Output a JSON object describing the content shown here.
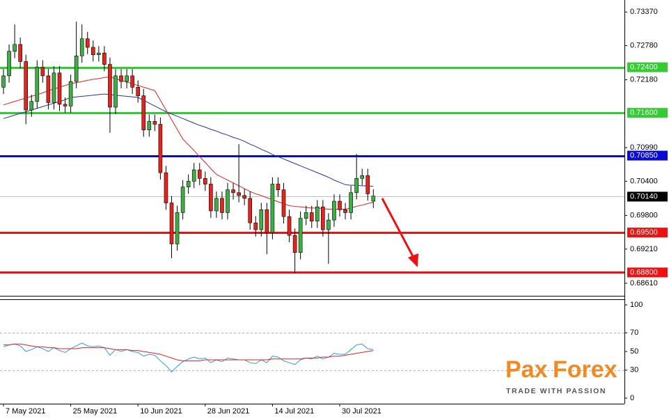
{
  "chart_data": [
    {
      "type": "candlestick",
      "categories": [
        "7 May 2021",
        null,
        null,
        null,
        null,
        null,
        null,
        null,
        null,
        null,
        null,
        null,
        "25 May 2021",
        null,
        null,
        null,
        null,
        null,
        null,
        null,
        null,
        null,
        null,
        null,
        "10 Jun 2021",
        null,
        null,
        null,
        null,
        null,
        null,
        null,
        null,
        null,
        null,
        null,
        "28 Jun 2021",
        null,
        null,
        null,
        null,
        null,
        null,
        null,
        null,
        null,
        null,
        null,
        "14 Jul 2021",
        null,
        null,
        null,
        null,
        null,
        null,
        null,
        null,
        null,
        null,
        null,
        "30 Jul 2021",
        null,
        null,
        null,
        null,
        null,
        null
      ],
      "open": [
        0.7205,
        0.7225,
        0.7268,
        0.728,
        0.725,
        0.7165,
        0.718,
        0.724,
        0.7225,
        0.7178,
        0.723,
        0.7175,
        0.7172,
        0.7215,
        0.726,
        0.729,
        0.7275,
        0.7262,
        0.7265,
        0.7245,
        0.717,
        0.7225,
        0.7215,
        0.7225,
        0.7205,
        0.719,
        0.713,
        0.7145,
        0.714,
        0.7055,
        0.7002,
        0.693,
        0.6985,
        0.703,
        0.704,
        0.706,
        0.7045,
        0.7035,
        0.6988,
        0.701,
        0.6985,
        0.7025,
        0.702,
        0.7015,
        0.701,
        0.6967,
        0.6955,
        0.699,
        0.695,
        0.7035,
        0.7025,
        0.6978,
        0.6945,
        0.6915,
        0.6975,
        0.6985,
        0.697,
        0.6995,
        0.6955,
        0.6972,
        0.7005,
        0.699,
        0.6985,
        0.702,
        0.7045,
        0.705,
        0.7005
      ],
      "high": [
        0.7237,
        0.728,
        0.7315,
        0.7292,
        0.7262,
        0.7192,
        0.7252,
        0.7252,
        0.7237,
        0.7242,
        0.7242,
        0.7187,
        0.7227,
        0.732,
        0.7315,
        0.7302,
        0.7287,
        0.7277,
        0.7277,
        0.7257,
        0.7237,
        0.7237,
        0.7237,
        0.7237,
        0.7217,
        0.7202,
        0.7157,
        0.7157,
        0.7152,
        0.7067,
        0.7014,
        0.6997,
        0.7042,
        0.7052,
        0.7072,
        0.7072,
        0.7057,
        0.7047,
        0.7022,
        0.7022,
        0.7037,
        0.7037,
        0.7105,
        0.7027,
        0.7022,
        0.6979,
        0.7002,
        0.7002,
        0.7047,
        0.7047,
        0.7037,
        0.699,
        0.6957,
        0.6987,
        0.6997,
        0.6997,
        0.7007,
        0.7007,
        0.6984,
        0.7017,
        0.7017,
        0.7002,
        0.7032,
        0.7088,
        0.7062,
        0.7062,
        0.7026
      ],
      "low": [
        0.7193,
        0.7213,
        0.7256,
        0.7238,
        0.714,
        0.7153,
        0.7168,
        0.7213,
        0.7166,
        0.7166,
        0.7163,
        0.716,
        0.716,
        0.7203,
        0.7248,
        0.7263,
        0.725,
        0.725,
        0.7233,
        0.7125,
        0.7158,
        0.7203,
        0.7203,
        0.7193,
        0.7178,
        0.7118,
        0.7118,
        0.7128,
        0.7043,
        0.699,
        0.6905,
        0.6918,
        0.6973,
        0.7018,
        0.7028,
        0.7033,
        0.7023,
        0.6976,
        0.6976,
        0.6973,
        0.6973,
        0.7008,
        0.7003,
        0.6998,
        0.6955,
        0.6943,
        0.6943,
        0.6912,
        0.6938,
        0.7013,
        0.6966,
        0.6933,
        0.6878,
        0.6903,
        0.6963,
        0.6958,
        0.6958,
        0.6943,
        0.6895,
        0.696,
        0.6978,
        0.6973,
        0.6973,
        0.7008,
        0.7033,
        0.7006,
        0.6993
      ],
      "close": [
        0.7225,
        0.7268,
        0.728,
        0.725,
        0.7165,
        0.718,
        0.724,
        0.7225,
        0.7178,
        0.723,
        0.7175,
        0.7172,
        0.7215,
        0.726,
        0.729,
        0.7275,
        0.7262,
        0.7265,
        0.7245,
        0.717,
        0.7225,
        0.7215,
        0.7225,
        0.7205,
        0.719,
        0.713,
        0.7145,
        0.714,
        0.7055,
        0.7002,
        0.693,
        0.6985,
        0.703,
        0.704,
        0.706,
        0.7045,
        0.7035,
        0.6988,
        0.701,
        0.6985,
        0.7025,
        0.702,
        0.7015,
        0.701,
        0.6967,
        0.6955,
        0.699,
        0.695,
        0.7035,
        0.7025,
        0.6978,
        0.6945,
        0.6915,
        0.6975,
        0.6985,
        0.697,
        0.6995,
        0.6955,
        0.6972,
        0.7005,
        0.699,
        0.6985,
        0.702,
        0.7045,
        0.705,
        0.7018,
        0.7014
      ],
      "up_color": "#3cb043",
      "down_color": "#e8241a",
      "series": [
        {
          "color": "#2233aa",
          "values": [
            0.715,
            0.7153,
            0.7156,
            0.7159,
            0.7162,
            0.7165,
            0.7168,
            0.7171,
            0.7174,
            0.7177,
            0.718,
            0.7183,
            0.7187,
            0.7188,
            0.7189,
            0.719,
            0.7191,
            0.7192,
            0.7193,
            0.7192,
            0.7191,
            0.719,
            0.7189,
            0.7188,
            0.7187,
            0.7182,
            0.7177,
            0.7172,
            0.7167,
            0.7162,
            0.7158,
            0.7154,
            0.715,
            0.7146,
            0.7142,
            0.7138,
            0.7135,
            0.7131,
            0.7128,
            0.7124,
            0.7121,
            0.7117,
            0.7114,
            0.711,
            0.7105,
            0.7101,
            0.7096,
            0.7092,
            0.7087,
            0.7083,
            0.7079,
            0.7075,
            0.7071,
            0.7067,
            0.7063,
            0.7059,
            0.7055,
            0.7051,
            0.7047,
            0.7042,
            0.7038,
            0.7034,
            0.7033,
            0.7033,
            0.7032,
            0.7032,
            0.7031
          ]
        },
        {
          "color": "#dd2222",
          "values": [
            0.7174,
            0.7177,
            0.718,
            0.7183,
            0.7186,
            0.7189,
            0.7192,
            0.7195,
            0.7199,
            0.7202,
            0.7205,
            0.7208,
            0.7211,
            0.7213,
            0.7215,
            0.7217,
            0.7219,
            0.722,
            0.7222,
            0.7223,
            0.722,
            0.7217,
            0.7214,
            0.7211,
            0.7208,
            0.7205,
            0.7202,
            0.7199,
            0.7182,
            0.7165,
            0.7148,
            0.7131,
            0.7114,
            0.7104,
            0.7094,
            0.7083,
            0.7073,
            0.7062,
            0.7052,
            0.7047,
            0.7042,
            0.7037,
            0.7032,
            0.7027,
            0.7022,
            0.7018,
            0.7015,
            0.7011,
            0.7008,
            0.7004,
            0.7001,
            0.6997,
            0.6996,
            0.6995,
            0.6994,
            0.6993,
            0.6993,
            0.6992,
            0.6991,
            0.6991,
            0.6991,
            0.6991,
            0.6993,
            0.6996,
            0.6998,
            0.7001,
            0.7003
          ]
        }
      ],
      "ylim": [
        0.6839,
        0.7358
      ],
      "yticks": [
        {
          "value": 0.7337,
          "label": "0.73370"
        },
        {
          "value": 0.7278,
          "label": "0.72780"
        },
        {
          "value": 0.7218,
          "label": "0.72180"
        },
        {
          "value": 0.7099,
          "label": "0.70990"
        },
        {
          "value": 0.704,
          "label": "0.70400"
        },
        {
          "value": 0.698,
          "label": "0.69800"
        },
        {
          "value": 0.6921,
          "label": "0.69210"
        },
        {
          "value": 0.6861,
          "label": "0.68610"
        }
      ],
      "levels": [
        {
          "value": 0.724,
          "label": "0.72400",
          "color": "#33cc33"
        },
        {
          "value": 0.716,
          "label": "0.71600",
          "color": "#33cc33"
        },
        {
          "value": 0.7085,
          "label": "0.70850",
          "color": "#0a0ad0"
        },
        {
          "value": 0.695,
          "label": "0.69500",
          "color": "#ee1111"
        },
        {
          "value": 0.688,
          "label": "0.68800",
          "color": "#ee1111"
        }
      ],
      "last_price": {
        "value": 0.7014,
        "label": "0.70140"
      }
    },
    {
      "type": "line",
      "series": [
        {
          "color": "#2a9ee8",
          "values": [
            55,
            57,
            58,
            56,
            50,
            52,
            55,
            53,
            50,
            54,
            51,
            49,
            53,
            56,
            59,
            56,
            55,
            56,
            54,
            46,
            52,
            50,
            52,
            50,
            49,
            45,
            47,
            46,
            40,
            35,
            28,
            34,
            39,
            42,
            44,
            42,
            43,
            38,
            41,
            39,
            43,
            42,
            41,
            41,
            38,
            37,
            41,
            38,
            45,
            44,
            40,
            38,
            36,
            41,
            43,
            42,
            45,
            42,
            44,
            48,
            47,
            47,
            52,
            57,
            58,
            53,
            52
          ]
        },
        {
          "color": "#dd2222",
          "values": [
            57,
            57,
            58,
            58,
            57,
            56,
            55,
            55,
            54,
            54,
            53,
            53,
            53,
            53,
            54,
            54,
            54,
            54,
            54,
            53,
            52,
            52,
            52,
            51,
            51,
            50,
            49,
            48,
            47,
            45,
            43,
            41,
            40,
            40,
            40,
            40,
            41,
            41,
            41,
            41,
            41,
            41,
            41,
            41,
            41,
            41,
            41,
            41,
            42,
            42,
            42,
            42,
            42,
            42,
            43,
            43,
            43,
            44,
            44,
            45,
            45,
            46,
            47,
            48,
            49,
            50,
            51
          ]
        }
      ],
      "ylim": [
        -6,
        106
      ],
      "yticks": [
        0,
        30,
        50,
        70,
        100
      ],
      "levels": [
        70,
        30
      ]
    }
  ],
  "logo": {
    "brand_left": "Pax",
    "brand_right": "Forex",
    "tagline": "TRADE WITH PASSION"
  }
}
